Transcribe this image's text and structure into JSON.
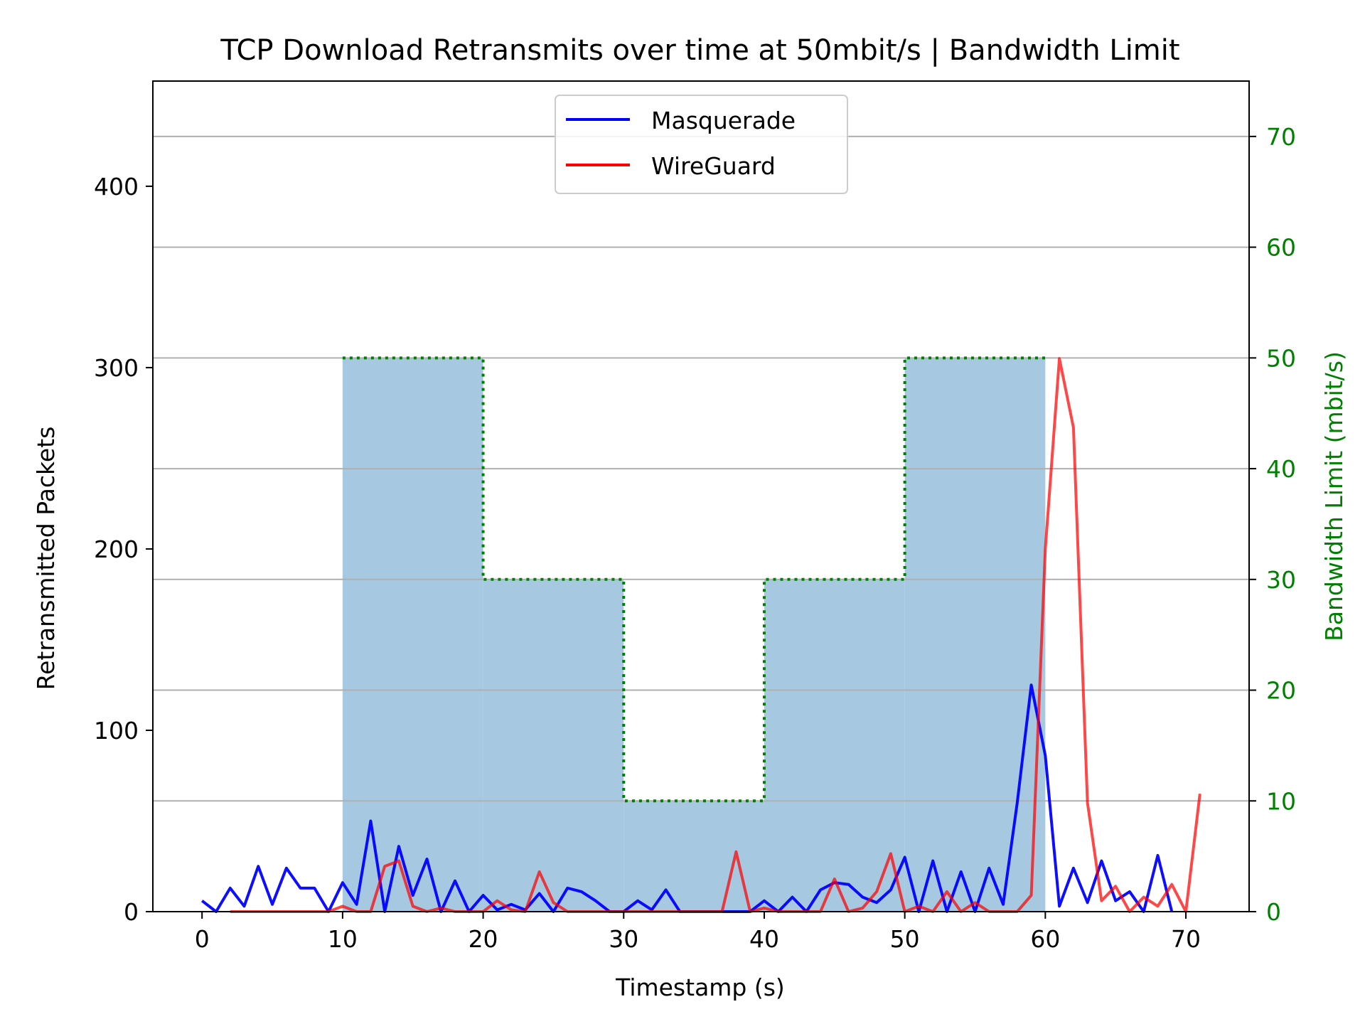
{
  "chart_data": {
    "type": "line",
    "title": "TCP Download Retransmits over time at 50mbit/s | Bandwidth Limit",
    "xlabel": "Timestamp (s)",
    "ylabel": "Retransmitted Packets",
    "y2label": "Bandwidth Limit (mbit/s)",
    "xlim": [
      -3.5,
      74.5
    ],
    "ylim": [
      0,
      458
    ],
    "y2lim": [
      0,
      75
    ],
    "xticks": [
      0,
      10,
      20,
      30,
      40,
      50,
      60,
      70
    ],
    "yticks": [
      0,
      100,
      200,
      300,
      400
    ],
    "y2ticks": [
      0,
      10,
      20,
      30,
      40,
      50,
      60,
      70
    ],
    "grid": "right-axis horizontal lines",
    "legend": {
      "position": "upper center",
      "entries": [
        "Masquerade",
        "WireGuard"
      ]
    },
    "colors": {
      "masquerade": "#0000ff",
      "wireguard": "#ff0000",
      "bandwidth_fill": "#a6c8e0",
      "bandwidth_line": "#008000",
      "overlap": "#993344"
    },
    "series": [
      {
        "name": "Masquerade",
        "color": "#0000ff",
        "x": [
          0,
          1,
          2,
          3,
          4,
          5,
          6,
          7,
          8,
          9,
          10,
          11,
          12,
          13,
          14,
          15,
          16,
          17,
          18,
          19,
          20,
          21,
          22,
          23,
          24,
          25,
          26,
          27,
          28,
          29,
          30,
          31,
          32,
          33,
          34,
          35,
          36,
          37,
          38,
          39,
          40,
          41,
          42,
          43,
          44,
          45,
          46,
          47,
          48,
          49,
          50,
          51,
          52,
          53,
          54,
          55,
          56,
          57,
          58,
          59,
          60,
          61,
          62,
          63,
          64,
          65,
          66,
          67,
          68,
          69
        ],
        "y": [
          6,
          0,
          13,
          3,
          25,
          4,
          24,
          13,
          13,
          0,
          16,
          4,
          50,
          0,
          36,
          9,
          29,
          0,
          17,
          0,
          9,
          1,
          4,
          1,
          10,
          0,
          13,
          11,
          6,
          0,
          0,
          6,
          1,
          12,
          0,
          0,
          0,
          0,
          0,
          0,
          6,
          0,
          8,
          0,
          12,
          16,
          15,
          8,
          5,
          12,
          30,
          0,
          28,
          0,
          22,
          0,
          24,
          4,
          60,
          125,
          86,
          3,
          24,
          5,
          28,
          6,
          11,
          0,
          31,
          0
        ]
      },
      {
        "name": "WireGuard",
        "color": "#ff0000",
        "x": [
          2,
          3,
          4,
          5,
          6,
          7,
          8,
          9,
          10,
          11,
          12,
          13,
          14,
          15,
          16,
          17,
          18,
          19,
          20,
          21,
          22,
          23,
          24,
          25,
          26,
          27,
          28,
          29,
          30,
          31,
          32,
          33,
          34,
          35,
          36,
          37,
          38,
          39,
          40,
          41,
          42,
          43,
          44,
          45,
          46,
          47,
          48,
          49,
          50,
          51,
          52,
          53,
          54,
          55,
          56,
          57,
          58,
          59,
          60,
          61,
          62,
          63,
          64,
          65,
          66,
          67,
          68,
          69,
          70,
          71
        ],
        "y": [
          0,
          0,
          0,
          0,
          0,
          0,
          0,
          0,
          3,
          0,
          0,
          25,
          28,
          3,
          0,
          2,
          0,
          0,
          0,
          6,
          1,
          0,
          22,
          5,
          0,
          0,
          0,
          0,
          0,
          0,
          0,
          0,
          0,
          0,
          0,
          0,
          33,
          0,
          2,
          0,
          0,
          0,
          0,
          18,
          0,
          2,
          11,
          32,
          0,
          3,
          0,
          11,
          0,
          5,
          0,
          0,
          0,
          9,
          200,
          305,
          267,
          60,
          6,
          14,
          0,
          8,
          3,
          15,
          0,
          65
        ]
      },
      {
        "name": "Bandwidth Limit",
        "axis": "right",
        "color": "#008000",
        "steps": [
          {
            "x0": 10,
            "x1": 20,
            "value": 50
          },
          {
            "x0": 20,
            "x1": 30,
            "value": 30
          },
          {
            "x0": 30,
            "x1": 40,
            "value": 10
          },
          {
            "x0": 40,
            "x1": 50,
            "value": 30
          },
          {
            "x0": 50,
            "x1": 60,
            "value": 50
          }
        ]
      }
    ]
  }
}
